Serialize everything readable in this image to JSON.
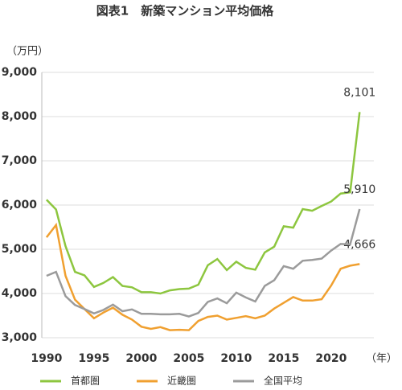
{
  "chart_data": {
    "type": "line",
    "title": "図表1　新築マンション平均価格",
    "y_unit_label": "（万円）",
    "x_unit_label": "（年）",
    "x": [
      1990,
      1991,
      1992,
      1993,
      1994,
      1995,
      1996,
      1997,
      1998,
      1999,
      2000,
      2001,
      2002,
      2003,
      2004,
      2005,
      2006,
      2007,
      2008,
      2009,
      2010,
      2011,
      2012,
      2013,
      2014,
      2015,
      2016,
      2017,
      2018,
      2019,
      2020,
      2021,
      2022,
      2023
    ],
    "series": [
      {
        "name": "首都圏",
        "color": "#8dc63f",
        "values": [
          6120,
          5900,
          5070,
          4490,
          4410,
          4150,
          4240,
          4370,
          4170,
          4140,
          4030,
          4030,
          4000,
          4070,
          4100,
          4110,
          4200,
          4640,
          4780,
          4530,
          4720,
          4580,
          4540,
          4930,
          5060,
          5520,
          5490,
          5910,
          5870,
          5980,
          6080,
          6260,
          6290,
          8101
        ],
        "value_labels": [
          null,
          null,
          null,
          null,
          null,
          null,
          null,
          null,
          null,
          null,
          null,
          null,
          null,
          null,
          null,
          null,
          null,
          null,
          null,
          null,
          null,
          null,
          null,
          null,
          null,
          null,
          null,
          null,
          null,
          null,
          null,
          null,
          null,
          "8,101"
        ]
      },
      {
        "name": "近畿圏",
        "color": "#f0a030",
        "values": [
          5270,
          5550,
          4400,
          3860,
          3650,
          3440,
          3570,
          3680,
          3520,
          3410,
          3250,
          3200,
          3240,
          3170,
          3180,
          3170,
          3380,
          3470,
          3500,
          3410,
          3450,
          3490,
          3440,
          3500,
          3660,
          3790,
          3920,
          3840,
          3840,
          3870,
          4180,
          4560,
          4630,
          4666
        ],
        "value_labels": [
          null,
          null,
          null,
          null,
          null,
          null,
          null,
          null,
          null,
          null,
          null,
          null,
          null,
          null,
          null,
          null,
          null,
          null,
          null,
          null,
          null,
          null,
          null,
          null,
          null,
          null,
          null,
          null,
          null,
          null,
          null,
          null,
          null,
          "4,666"
        ]
      },
      {
        "name": "全国平均",
        "color": "#9b9b9b",
        "values": [
          4400,
          4490,
          3940,
          3740,
          3650,
          3550,
          3630,
          3750,
          3600,
          3640,
          3540,
          3540,
          3530,
          3530,
          3540,
          3480,
          3560,
          3810,
          3890,
          3780,
          4020,
          3910,
          3820,
          4170,
          4300,
          4620,
          4560,
          4740,
          4760,
          4790,
          4970,
          5120,
          5110,
          5910
        ],
        "value_labels": [
          null,
          null,
          null,
          null,
          null,
          null,
          null,
          null,
          null,
          null,
          null,
          null,
          null,
          null,
          null,
          null,
          null,
          null,
          null,
          null,
          null,
          null,
          null,
          null,
          null,
          null,
          null,
          null,
          null,
          null,
          null,
          null,
          null,
          "5,910"
        ]
      }
    ],
    "xlim": [
      1989.5,
      2024.5
    ],
    "xticks": [
      1990,
      1995,
      2000,
      2005,
      2010,
      2015,
      2020
    ],
    "ylim": [
      3000,
      9000
    ],
    "yticks": [
      {
        "value": 3000,
        "label": "3,000"
      },
      {
        "value": 4000,
        "label": "4,000"
      },
      {
        "value": 5000,
        "label": "5,000"
      },
      {
        "value": 6000,
        "label": "6,000"
      },
      {
        "value": 7000,
        "label": "7,000"
      },
      {
        "value": 8000,
        "label": "8,000"
      },
      {
        "value": 9000,
        "label": "9,000"
      }
    ],
    "grid": true
  }
}
